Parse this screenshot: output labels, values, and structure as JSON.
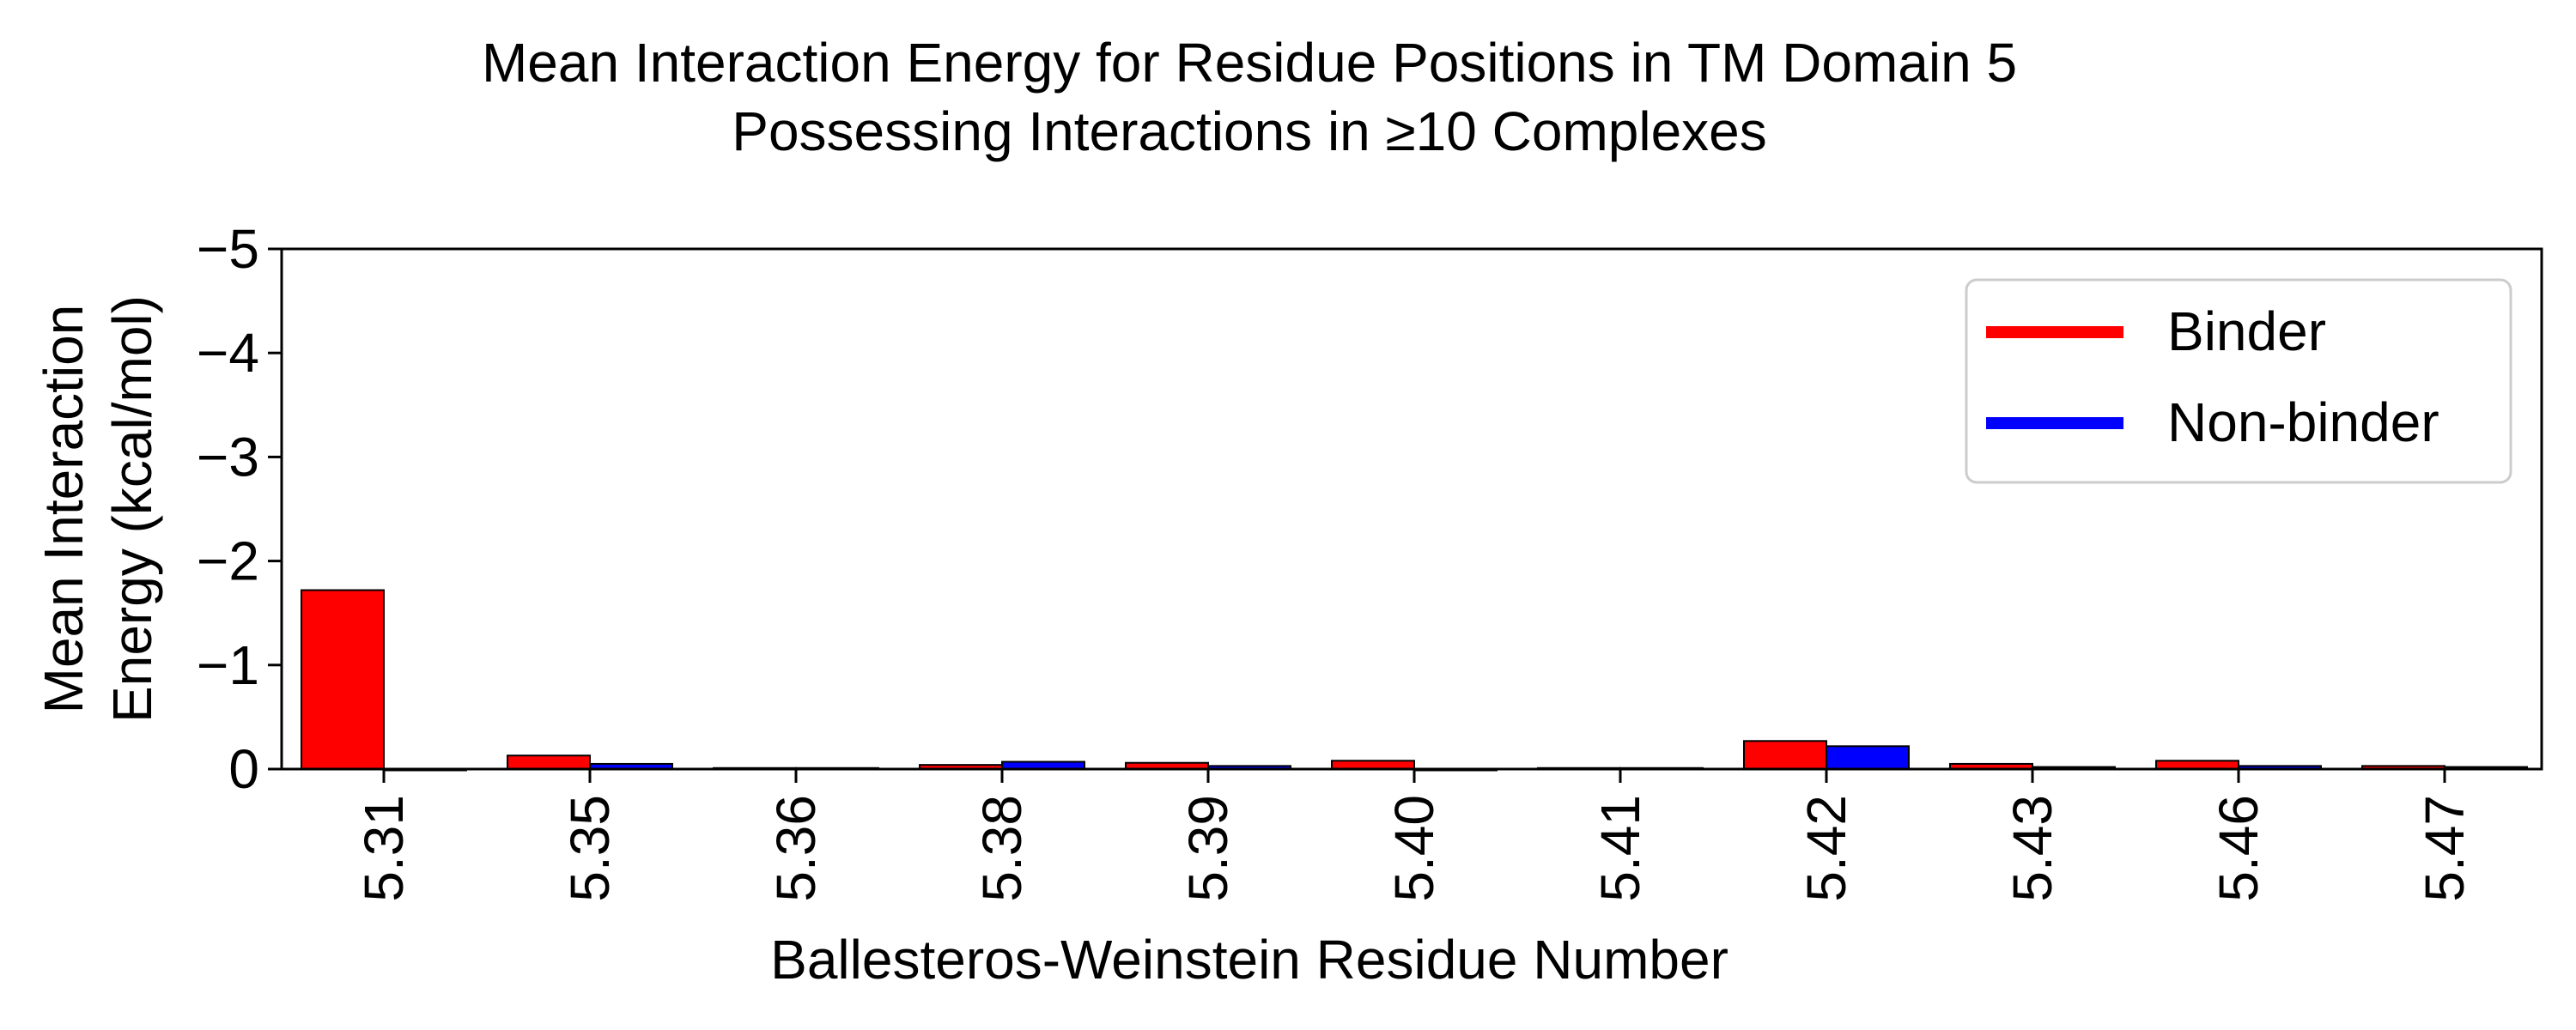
{
  "chart_data": {
    "type": "bar",
    "title": [
      "Mean Interaction Energy for Residue Positions in TM Domain 5",
      "Possessing Interactions in ≥10 Complexes"
    ],
    "xlabel": "Ballesteros-Weinstein Residue Number",
    "ylabel": [
      "Mean Interaction",
      "Energy (kcal/mol)"
    ],
    "ylim": [
      0,
      -5
    ],
    "y_inverted": true,
    "yticks": [
      0,
      -1,
      -2,
      -3,
      -4,
      -5
    ],
    "ytick_labels": [
      "0",
      "−1",
      "−2",
      "−3",
      "−4",
      "−5"
    ],
    "categories": [
      "5.31",
      "5.35",
      "5.36",
      "5.38",
      "5.39",
      "5.40",
      "5.41",
      "5.42",
      "5.43",
      "5.46",
      "5.47"
    ],
    "series": [
      {
        "name": "Binder",
        "color": "#ff0000",
        "values": [
          -1.72,
          -0.13,
          -0.01,
          -0.04,
          -0.06,
          -0.08,
          -0.01,
          -0.27,
          -0.05,
          -0.08,
          -0.03
        ]
      },
      {
        "name": "Non-binder",
        "color": "#0000ff",
        "values": [
          0.0,
          -0.05,
          -0.01,
          -0.07,
          -0.03,
          0.0,
          -0.01,
          -0.22,
          -0.02,
          -0.03,
          -0.02
        ]
      }
    ],
    "grid": false,
    "legend_position": "top-right"
  }
}
